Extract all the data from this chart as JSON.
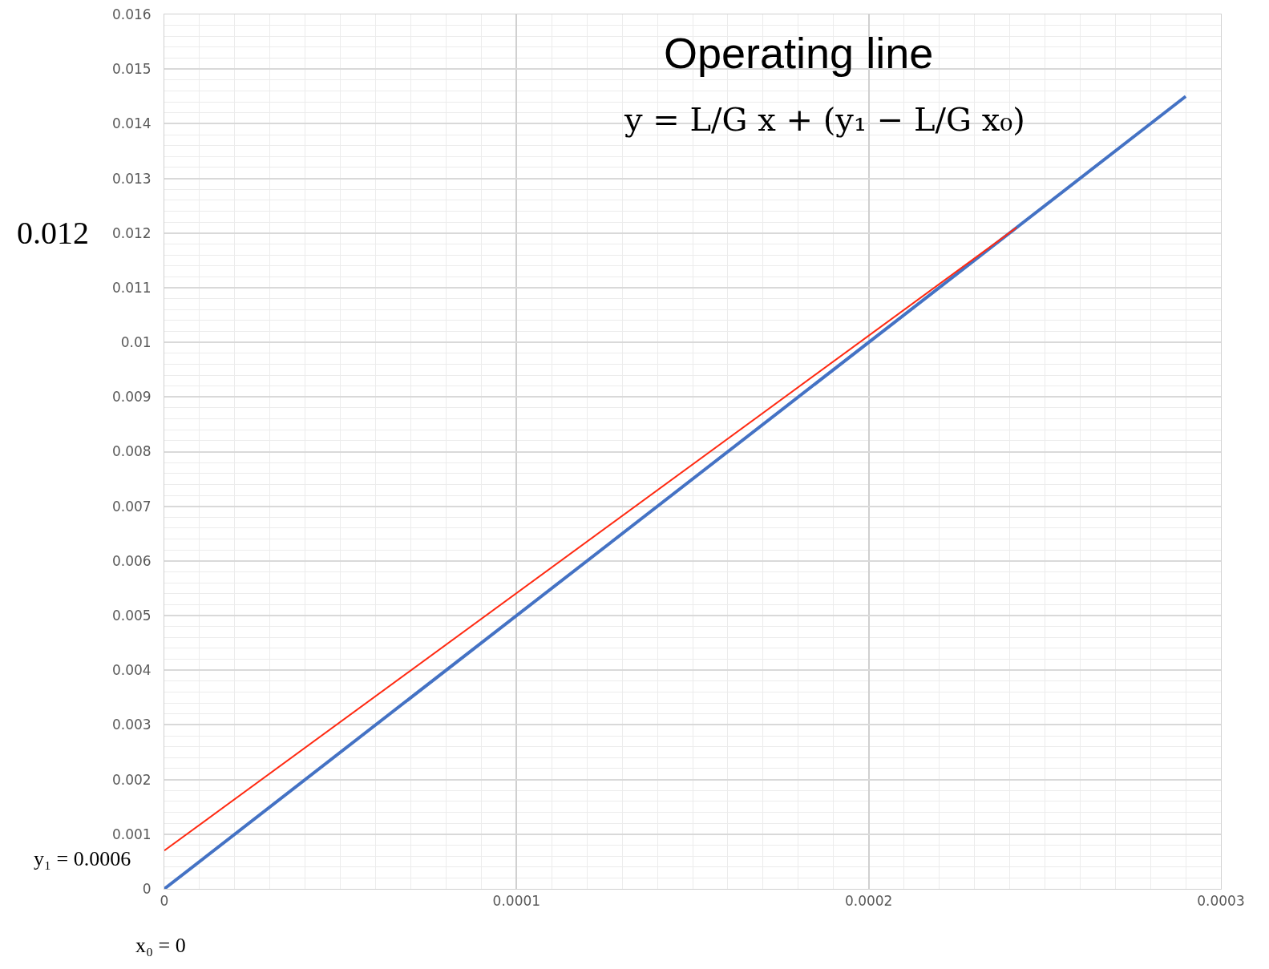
{
  "chart_data": {
    "type": "line",
    "xlim": [
      0,
      0.0003
    ],
    "xticks": [
      0,
      0.0001,
      0.0002,
      0.0003
    ],
    "ylim": [
      0,
      0.016
    ],
    "yticks": [
      0,
      0.001,
      0.002,
      0.003,
      0.004,
      0.005,
      0.006,
      0.007,
      0.008,
      0.009,
      0.01,
      0.011,
      0.012,
      0.013,
      0.014,
      0.015,
      0.016
    ],
    "grid": true,
    "marker": "none",
    "line_style": "solid",
    "series": [
      {
        "color": "#4472c4",
        "x": [
          0,
          0.00029
        ],
        "values": [
          0,
          0.0145
        ]
      },
      {
        "color": "#ff2a12",
        "x": [
          0,
          0.000242
        ],
        "values": [
          0.0007,
          0.0121
        ]
      }
    ],
    "annotations": [
      {
        "text": "Operating line"
      },
      {
        "text": "y = L/G x + (y₁ − L/G x₀)"
      },
      "0.012",
      "y₁ = 0.0006",
      {
        "text": "x₀ = 0",
        "x": 0,
        "y": 0
      }
    ]
  }
}
